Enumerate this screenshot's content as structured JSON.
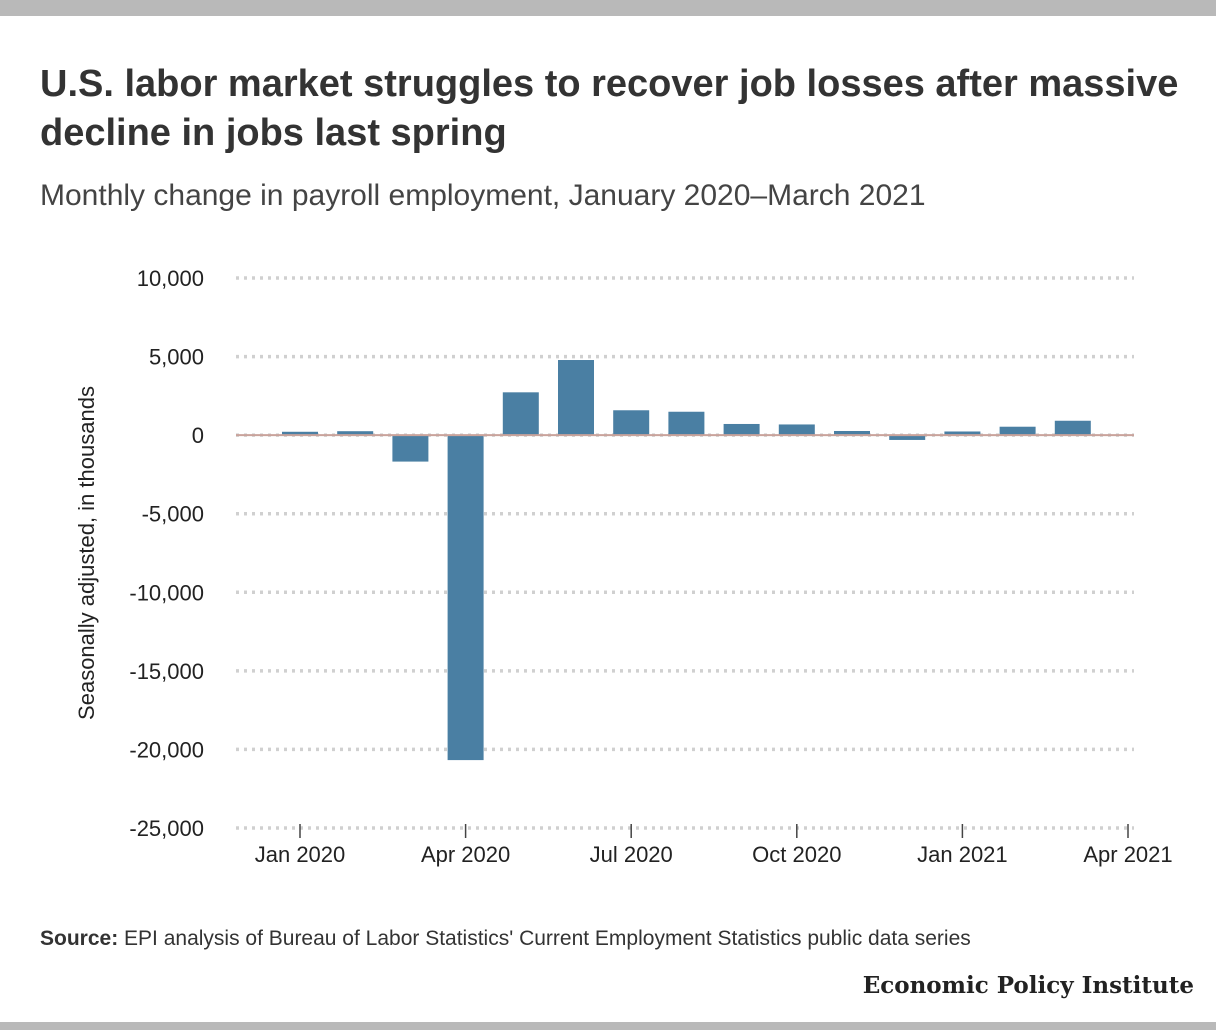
{
  "header": {
    "title": "U.S. labor market struggles to recover job losses after massive decline in jobs last spring",
    "subtitle": "Monthly change in payroll employment, January 2020–March 2021"
  },
  "chart_data": {
    "type": "bar",
    "ylabel": "Seasonally adjusted, in thousands",
    "xlabel": "",
    "ylim": [
      -25000,
      10000
    ],
    "yticks": [
      10000,
      5000,
      0,
      -5000,
      -10000,
      -15000,
      -20000,
      -25000
    ],
    "ytick_labels": [
      "10,000",
      "5,000",
      "0",
      "-5,000",
      "-10,000",
      "-15,000",
      "-20,000",
      "-25,000"
    ],
    "xtick_labels": [
      "Jan 2020",
      "Apr 2020",
      "Jul 2020",
      "Oct 2020",
      "Jan 2021",
      "Apr 2021"
    ],
    "categories": [
      "Jan 2020",
      "Feb 2020",
      "Mar 2020",
      "Apr 2020",
      "May 2020",
      "Jun 2020",
      "Jul 2020",
      "Aug 2020",
      "Sep 2020",
      "Oct 2020",
      "Nov 2020",
      "Dec 2020",
      "Jan 2021",
      "Feb 2021",
      "Mar 2021"
    ],
    "values": [
      214,
      251,
      -1683,
      -20679,
      2725,
      4781,
      1583,
      1489,
      711,
      680,
      264,
      -306,
      233,
      536,
      916
    ],
    "bar_color": "#4a7fa3",
    "gridlines": true
  },
  "footer": {
    "source_label": "Source:",
    "source_text": " EPI analysis of Bureau of Labor Statistics' Current Employment Statistics public data series",
    "brand": "Economic Policy Institute"
  }
}
